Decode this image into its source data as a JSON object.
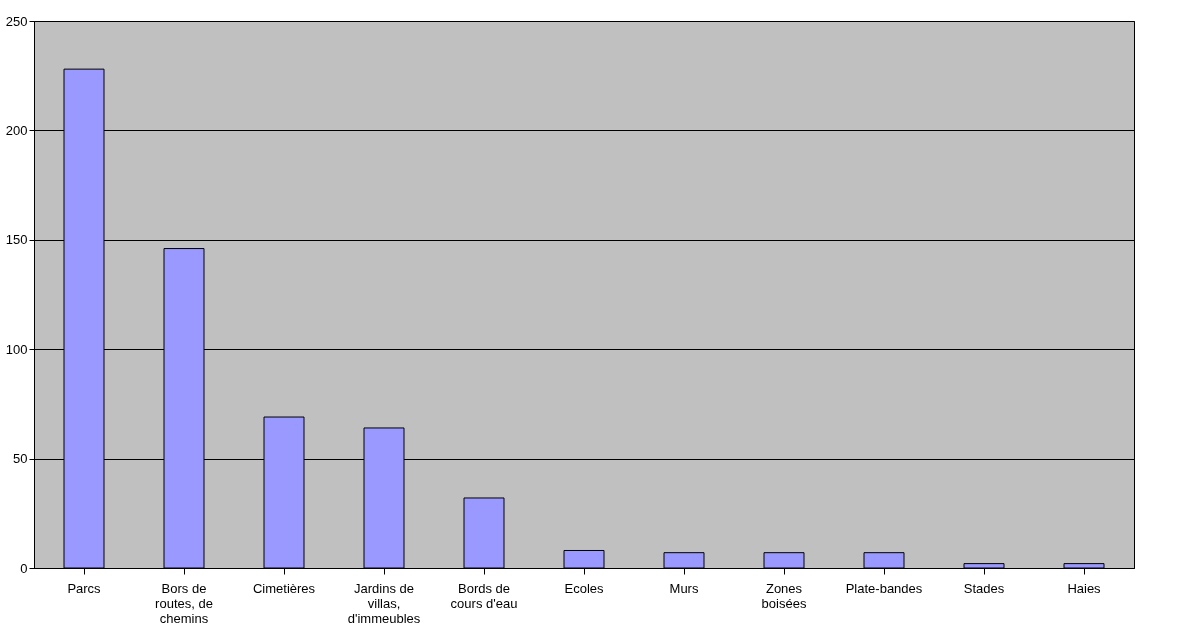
{
  "chart_data": {
    "type": "bar",
    "categories": [
      "Parcs",
      "Bors de routes, de chemins",
      "Cimetières",
      "Jardins de villas, d'immeubles",
      "Bords de cours d'eau",
      "Ecoles",
      "Murs",
      "Zones boisées",
      "Plate-bandes",
      "Stades",
      "Haies"
    ],
    "values": [
      228,
      146,
      69,
      64,
      32,
      8,
      7,
      7,
      7,
      2,
      2
    ],
    "color": "#9999ff",
    "ylim": [
      0,
      250
    ],
    "yticks": [
      0,
      50,
      100,
      150,
      200,
      250
    ],
    "grid": "y"
  }
}
